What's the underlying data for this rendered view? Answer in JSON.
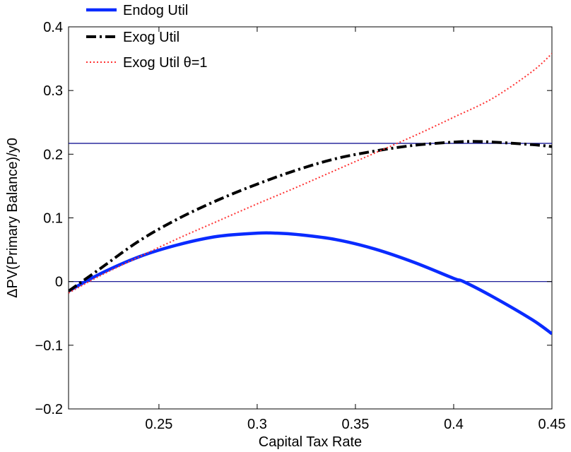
{
  "chart_data": {
    "type": "line",
    "xlabel": "Capital Tax Rate",
    "ylabel": "ΔPV(Primary Balance)/y0",
    "xlim": [
      0.204,
      0.45
    ],
    "ylim": [
      -0.2,
      0.4
    ],
    "xticks": [
      0.25,
      0.3,
      0.35,
      0.4,
      0.45
    ],
    "xtick_labels": [
      "0.25",
      "0.3",
      "0.35",
      "0.4",
      "0.45"
    ],
    "yticks": [
      -0.2,
      -0.1,
      0,
      0.1,
      0.2,
      0.3,
      0.4
    ],
    "ytick_labels": [
      "−0.2",
      "−0.1",
      "0",
      "0.1",
      "0.2",
      "0.3",
      "0.4"
    ],
    "grid": false,
    "legend_position": "top-left",
    "hlines": [
      {
        "y": 0.217,
        "color": "#00008b"
      },
      {
        "y": 0.0,
        "color": "#00008b"
      }
    ],
    "series": [
      {
        "name": "Endog Util",
        "style": "solid",
        "color": "#0a2bff",
        "x": [
          0.204,
          0.22,
          0.24,
          0.26,
          0.28,
          0.3,
          0.31,
          0.32,
          0.34,
          0.36,
          0.38,
          0.4,
          0.405,
          0.42,
          0.44,
          0.45
        ],
        "y": [
          -0.015,
          0.012,
          0.039,
          0.058,
          0.071,
          0.076,
          0.076,
          0.074,
          0.066,
          0.051,
          0.03,
          0.005,
          0.0,
          -0.024,
          -0.06,
          -0.082
        ]
      },
      {
        "name": "Exog Util",
        "style": "dash-dot",
        "color": "#000000",
        "x": [
          0.204,
          0.22,
          0.24,
          0.26,
          0.28,
          0.3,
          0.32,
          0.34,
          0.36,
          0.38,
          0.4,
          0.41,
          0.42,
          0.44,
          0.45
        ],
        "y": [
          -0.015,
          0.02,
          0.064,
          0.099,
          0.128,
          0.153,
          0.175,
          0.193,
          0.205,
          0.214,
          0.219,
          0.22,
          0.219,
          0.215,
          0.212
        ]
      },
      {
        "name": "Exog Util θ=1",
        "style": "dotted",
        "color": "#ff3333",
        "x": [
          0.204,
          0.22,
          0.24,
          0.26,
          0.28,
          0.3,
          0.32,
          0.34,
          0.36,
          0.38,
          0.4,
          0.42,
          0.44,
          0.45
        ],
        "y": [
          -0.018,
          0.009,
          0.039,
          0.068,
          0.095,
          0.122,
          0.148,
          0.175,
          0.202,
          0.229,
          0.258,
          0.288,
          0.33,
          0.358
        ]
      }
    ]
  }
}
